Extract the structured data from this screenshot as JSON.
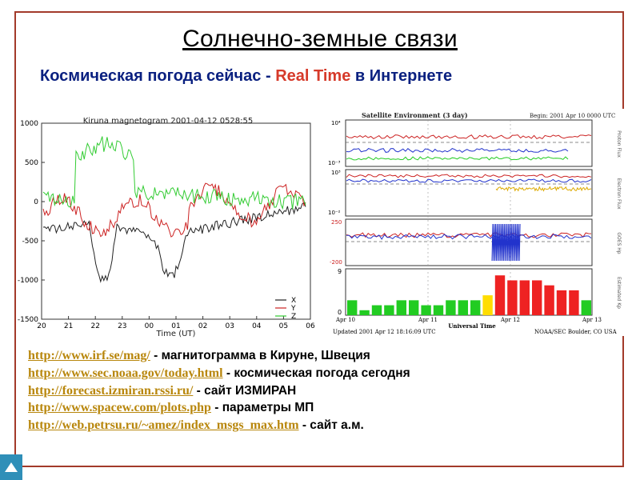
{
  "slide": {
    "title": "Солнечно-земные связи",
    "subtitle_prefix": "Космическая погода сейчас - ",
    "subtitle_highlight": "Real Time",
    "subtitle_suffix": " в Интернете"
  },
  "magnetogram": {
    "title": "Kiruna magnetogram 2001-04-12 0528:55",
    "xlabel": "Time (UT)",
    "y_ticks": [
      "1000",
      "500",
      "0",
      "-500",
      "-1000",
      "-1500"
    ],
    "x_ticks": [
      "20",
      "21",
      "22",
      "23",
      "00",
      "01",
      "02",
      "03",
      "04",
      "05",
      "06"
    ],
    "legend": [
      "X",
      "Y",
      "Z"
    ],
    "colors": {
      "X": "#222222",
      "Y": "#cc2222",
      "Z": "#33cc33"
    }
  },
  "satellite": {
    "title": "Satellite Environment (3 day)",
    "begin": "Begin:  2001 Apr 10 0000 UTC",
    "panel1_ticks": [
      "10⁴",
      "10⁻³"
    ],
    "panel2_ticks": [
      "10³",
      "10⁻²"
    ],
    "panel3_ticks": [
      "250",
      "-200"
    ],
    "panel4_ticks": [
      "9",
      "0"
    ],
    "x_ticks": [
      "Apr 10",
      "Apr 11",
      "Apr 12",
      "Apr 13"
    ],
    "xlabel": "Universal Time",
    "updated": "Updated 2001 Apr 12 18:16:09 UTC",
    "source": "NOAA/SEC Boulder, CO USA",
    "side_labels": [
      "Proton Flux",
      "Electron Flux",
      "GOES Hp",
      "Estimated Kp"
    ],
    "kp_values": [
      3,
      1,
      2,
      2,
      3,
      3,
      2,
      2,
      3,
      3,
      3,
      4,
      8,
      7,
      7,
      7,
      6,
      5,
      5,
      3
    ],
    "kp_colors": {
      "low": "#22cc22",
      "mid": "#ffdd00",
      "high": "#ee2222"
    }
  },
  "links": [
    {
      "url": "http://www.irf.se/mag/",
      "desc": " - магнитограмма в Кируне, Швеция"
    },
    {
      "url": "http://www.sec.noaa.gov/today.html",
      "desc": " - космическая погода сегодня"
    },
    {
      "url": "http://forecast.izmiran.rssi.ru/",
      "desc": " - сайт ИЗМИРАН"
    },
    {
      "url": "http://www.spacew.com/plots.php",
      "desc": " - параметры МП"
    },
    {
      "url": "http://web.petrsu.ru/~amez/index_msgs_max.htm",
      "desc": " - сайт а.м."
    }
  ]
}
